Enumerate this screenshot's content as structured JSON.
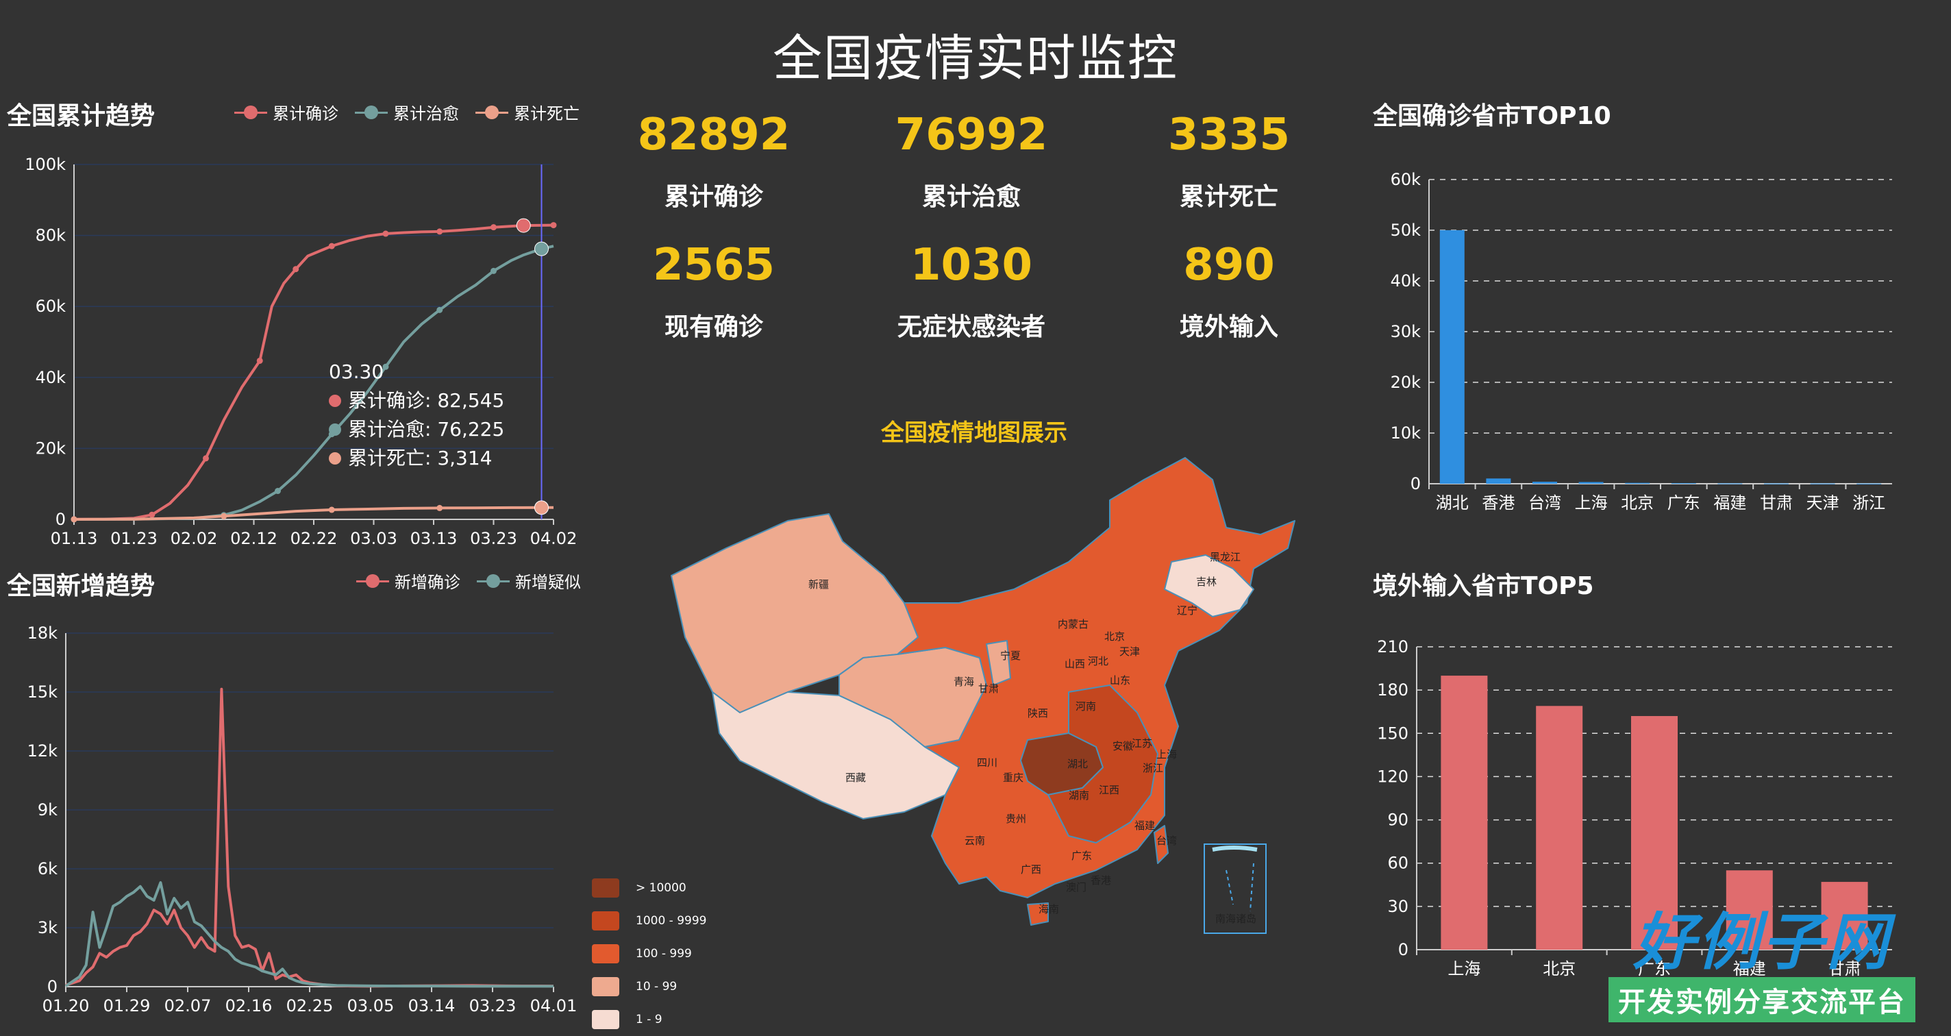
{
  "page": {
    "title": "全国疫情实时监控"
  },
  "colors": {
    "confirmed": "#e06c6e",
    "cured": "#749f9e",
    "dead": "#eba08a",
    "accent": "#f5c518",
    "bar_blue": "#2f8fe0",
    "bar_red": "#e06c6e",
    "background": "#333333"
  },
  "stats": [
    {
      "value": "82892",
      "label": "累计确诊"
    },
    {
      "value": "76992",
      "label": "累计治愈"
    },
    {
      "value": "3335",
      "label": "累计死亡"
    },
    {
      "value": "2565",
      "label": "现有确诊"
    },
    {
      "value": "1030",
      "label": "无症状感染者"
    },
    {
      "value": "890",
      "label": "境外输入"
    }
  ],
  "map": {
    "title": "全国疫情地图展示",
    "legend": [
      {
        "label": "> 10000",
        "color": "#8e3b1f"
      },
      {
        "label": "1000 - 9999",
        "color": "#c4471f"
      },
      {
        "label": "100 - 999",
        "color": "#e25a2e"
      },
      {
        "label": "10 - 99",
        "color": "#eeaa8f"
      },
      {
        "label": "1 - 9",
        "color": "#f6dcd2"
      }
    ],
    "provinces": [
      "新疆",
      "西藏",
      "青海",
      "甘肃",
      "宁夏",
      "内蒙古",
      "黑龙江",
      "吉林",
      "辽宁",
      "北京",
      "天津",
      "河北",
      "山西",
      "山东",
      "陕西",
      "河南",
      "江苏",
      "安徽",
      "湖北",
      "上海",
      "浙江",
      "四川",
      "重庆",
      "湖南",
      "江西",
      "贵州",
      "云南",
      "福建",
      "广西",
      "广东",
      "台湾",
      "香港",
      "澳门",
      "海南",
      "南海诸岛"
    ]
  },
  "tooltip": {
    "date": "03.30",
    "rows": [
      {
        "label": "累计确诊: 82,545",
        "color": "#e06c6e"
      },
      {
        "label": "累计治愈: 76,225",
        "color": "#749f9e"
      },
      {
        "label": "累计死亡: 3,314",
        "color": "#eba08a"
      }
    ]
  },
  "watermark": {
    "main": "好例子网",
    "sub": "开发实例分享交流平台"
  },
  "chart_data": [
    {
      "id": "cumulative",
      "type": "line",
      "title": "全国累计趋势",
      "x_ticks": [
        "01.13",
        "01.23",
        "02.02",
        "02.12",
        "02.22",
        "03.03",
        "03.13",
        "03.23",
        "04.02"
      ],
      "y_ticks": [
        "0",
        "20k",
        "40k",
        "60k",
        "80k",
        "100k"
      ],
      "ylim": [
        0,
        100000
      ],
      "xlim": [
        0,
        80
      ],
      "series": [
        {
          "name": "累计确诊",
          "color": "#e06c6e",
          "points": [
            [
              0,
              41
            ],
            [
              5,
              45
            ],
            [
              10,
              300
            ],
            [
              13,
              1300
            ],
            [
              16,
              4500
            ],
            [
              19,
              9700
            ],
            [
              22,
              17200
            ],
            [
              25,
              28000
            ],
            [
              28,
              37200
            ],
            [
              31,
              44700
            ],
            [
              33,
              60000
            ],
            [
              35,
              66500
            ],
            [
              37,
              70500
            ],
            [
              39,
              74200
            ],
            [
              41,
              75600
            ],
            [
              43,
              77000
            ],
            [
              46,
              78600
            ],
            [
              49,
              79800
            ],
            [
              52,
              80500
            ],
            [
              55,
              80800
            ],
            [
              58,
              81000
            ],
            [
              61,
              81100
            ],
            [
              64,
              81400
            ],
            [
              67,
              81800
            ],
            [
              70,
              82300
            ],
            [
              73,
              82600
            ],
            [
              75,
              82800
            ],
            [
              80,
              82892
            ]
          ]
        },
        {
          "name": "累计治愈",
          "color": "#749f9e",
          "points": [
            [
              0,
              0
            ],
            [
              10,
              30
            ],
            [
              20,
              300
            ],
            [
              25,
              1200
            ],
            [
              28,
              2600
            ],
            [
              31,
              5000
            ],
            [
              34,
              8000
            ],
            [
              37,
              12500
            ],
            [
              40,
              18000
            ],
            [
              43,
              24000
            ],
            [
              46,
              29700
            ],
            [
              49,
              36000
            ],
            [
              52,
              43000
            ],
            [
              55,
              50000
            ],
            [
              58,
              55000
            ],
            [
              61,
              59000
            ],
            [
              64,
              62800
            ],
            [
              67,
              66000
            ],
            [
              70,
              70000
            ],
            [
              73,
              73000
            ],
            [
              75,
              74500
            ],
            [
              78,
              76225
            ],
            [
              80,
              76992
            ]
          ]
        },
        {
          "name": "累计死亡",
          "color": "#eba08a",
          "points": [
            [
              0,
              1
            ],
            [
              10,
              50
            ],
            [
              20,
              400
            ],
            [
              25,
              900
            ],
            [
              31,
              1600
            ],
            [
              37,
              2300
            ],
            [
              43,
              2700
            ],
            [
              49,
              2900
            ],
            [
              55,
              3100
            ],
            [
              61,
              3200
            ],
            [
              67,
              3250
            ],
            [
              73,
              3300
            ],
            [
              78,
              3314
            ],
            [
              80,
              3335
            ]
          ]
        }
      ]
    },
    {
      "id": "daily",
      "type": "line",
      "title": "全国新增趋势",
      "x_ticks": [
        "01.20",
        "01.29",
        "02.07",
        "02.16",
        "02.25",
        "03.05",
        "03.14",
        "03.23",
        "04.01"
      ],
      "y_ticks": [
        "0",
        "3k",
        "6k",
        "9k",
        "12k",
        "15k",
        "18k"
      ],
      "ylim": [
        0,
        18000
      ],
      "xlim": [
        0,
        72
      ],
      "series": [
        {
          "name": "新增确诊",
          "color": "#e06c6e",
          "points": [
            [
              0,
              77
            ],
            [
              2,
              300
            ],
            [
              3,
              700
            ],
            [
              4,
              1000
            ],
            [
              5,
              1700
            ],
            [
              6,
              1500
            ],
            [
              7,
              1800
            ],
            [
              8,
              2000
            ],
            [
              9,
              2100
            ],
            [
              10,
              2600
            ],
            [
              11,
              2800
            ],
            [
              12,
              3200
            ],
            [
              13,
              3900
            ],
            [
              14,
              3700
            ],
            [
              15,
              3200
            ],
            [
              16,
              3900
            ],
            [
              17,
              3000
            ],
            [
              18,
              2600
            ],
            [
              19,
              2000
            ],
            [
              20,
              2500
            ],
            [
              21,
              2000
            ],
            [
              22,
              1800
            ],
            [
              23,
              15150
            ],
            [
              24,
              5100
            ],
            [
              25,
              2600
            ],
            [
              26,
              2000
            ],
            [
              27,
              2100
            ],
            [
              28,
              1900
            ],
            [
              29,
              800
            ],
            [
              30,
              1700
            ],
            [
              31,
              400
            ],
            [
              32,
              600
            ],
            [
              33,
              500
            ],
            [
              34,
              600
            ],
            [
              35,
              300
            ],
            [
              36,
              200
            ],
            [
              38,
              100
            ],
            [
              40,
              50
            ],
            [
              42,
              30
            ],
            [
              45,
              20
            ],
            [
              50,
              40
            ],
            [
              55,
              50
            ],
            [
              60,
              60
            ],
            [
              65,
              40
            ],
            [
              70,
              35
            ],
            [
              72,
              30
            ]
          ]
        },
        {
          "name": "新增疑似",
          "color": "#749f9e",
          "points": [
            [
              0,
              30
            ],
            [
              2,
              500
            ],
            [
              3,
              1100
            ],
            [
              4,
              3800
            ],
            [
              5,
              2000
            ],
            [
              6,
              3000
            ],
            [
              7,
              4100
            ],
            [
              8,
              4300
            ],
            [
              9,
              4600
            ],
            [
              10,
              4800
            ],
            [
              11,
              5100
            ],
            [
              12,
              4600
            ],
            [
              13,
              4400
            ],
            [
              14,
              5300
            ],
            [
              15,
              3700
            ],
            [
              16,
              4500
            ],
            [
              17,
              4000
            ],
            [
              18,
              4300
            ],
            [
              19,
              3300
            ],
            [
              20,
              3100
            ],
            [
              21,
              2700
            ],
            [
              22,
              2300
            ],
            [
              23,
              2000
            ],
            [
              24,
              1800
            ],
            [
              25,
              1400
            ],
            [
              26,
              1200
            ],
            [
              27,
              1100
            ],
            [
              28,
              1000
            ],
            [
              29,
              800
            ],
            [
              30,
              700
            ],
            [
              31,
              600
            ],
            [
              32,
              900
            ],
            [
              33,
              450
            ],
            [
              34,
              300
            ],
            [
              35,
              200
            ],
            [
              36,
              150
            ],
            [
              38,
              100
            ],
            [
              40,
              60
            ],
            [
              45,
              40
            ],
            [
              50,
              30
            ],
            [
              55,
              30
            ],
            [
              60,
              20
            ],
            [
              65,
              20
            ],
            [
              72,
              20
            ]
          ]
        }
      ]
    },
    {
      "id": "top10",
      "type": "bar",
      "title": "全国确诊省市TOP10",
      "categories": [
        "湖北",
        "香港",
        "台湾",
        "上海",
        "北京",
        "广东",
        "福建",
        "甘肃",
        "天津",
        "浙江"
      ],
      "values": [
        50006,
        1037,
        395,
        339,
        177,
        125,
        70,
        53,
        48,
        32
      ],
      "y_ticks": [
        "0",
        "10k",
        "20k",
        "30k",
        "40k",
        "50k",
        "60k"
      ],
      "ylim": [
        0,
        60000
      ],
      "color": "#2f8fe0"
    },
    {
      "id": "top5_imported",
      "type": "bar",
      "title": "境外输入省市TOP5",
      "categories": [
        "上海",
        "北京",
        "广东",
        "福建",
        "甘肃"
      ],
      "values": [
        190,
        169,
        162,
        55,
        47
      ],
      "y_ticks": [
        "0",
        "30",
        "60",
        "90",
        "120",
        "150",
        "180",
        "210"
      ],
      "ylim": [
        0,
        210
      ],
      "color": "#e06c6e"
    }
  ]
}
